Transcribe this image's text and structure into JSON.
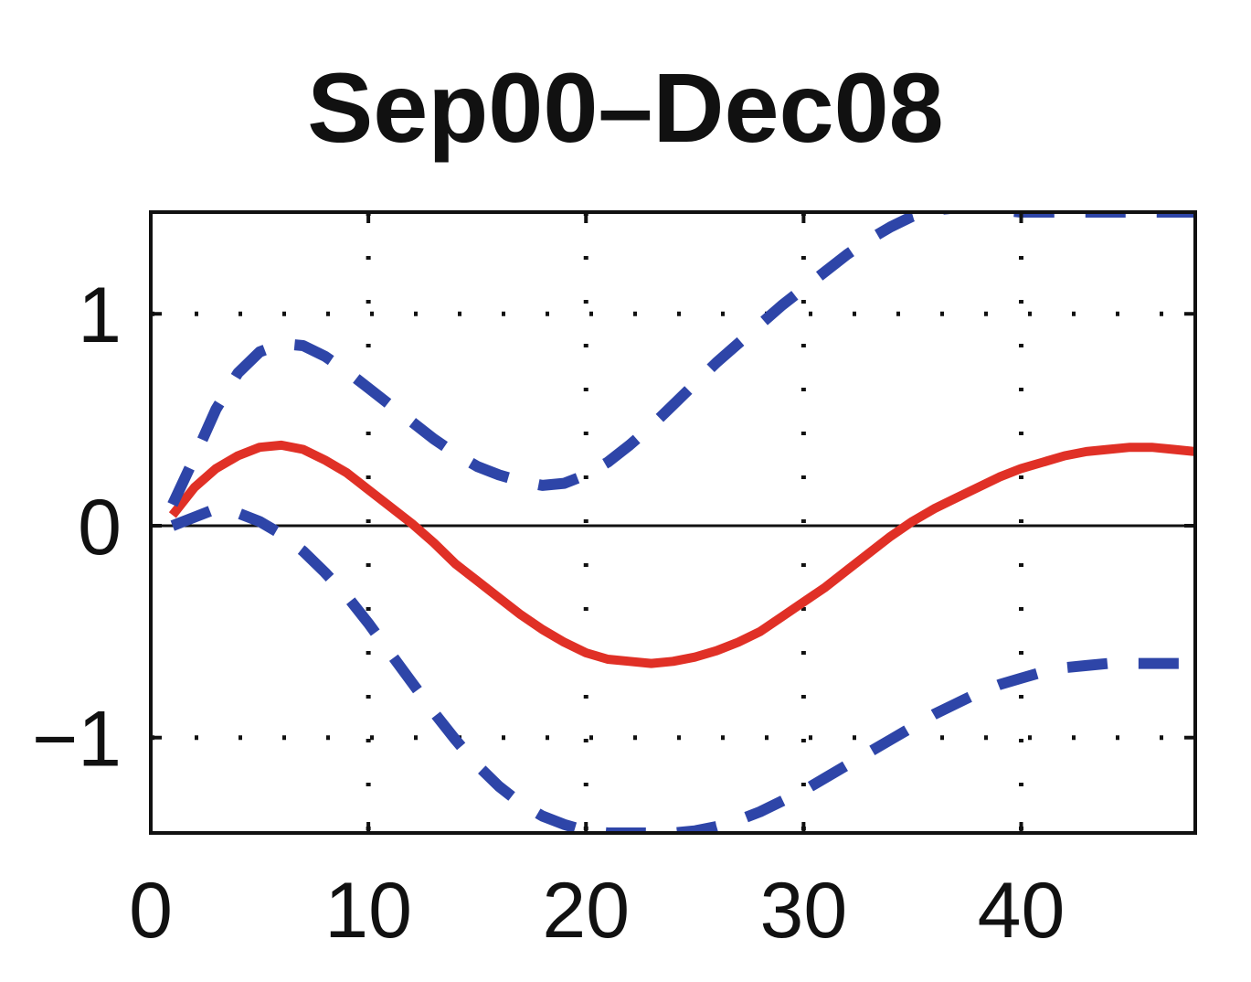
{
  "chart_data": {
    "type": "line",
    "title": "Sep00–Dec08",
    "xlabel": "",
    "ylabel": "",
    "xlim": [
      0,
      48
    ],
    "ylim": [
      -1.45,
      1.48
    ],
    "xticks": [
      0,
      10,
      20,
      30,
      40
    ],
    "xtick_labels": [
      "0",
      "10",
      "20",
      "30",
      "40"
    ],
    "yticks": [
      -1,
      0,
      1
    ],
    "ytick_labels": [
      "−1",
      "0",
      "1"
    ],
    "grid": "dotted",
    "zero_line": true,
    "legend": "none",
    "series": [
      {
        "role": "estimate",
        "color": "#e03026",
        "style": "solid",
        "x": [
          1,
          2,
          3,
          4,
          5,
          6,
          7,
          8,
          9,
          10,
          11,
          12,
          13,
          14,
          15,
          16,
          17,
          18,
          19,
          20,
          21,
          22,
          23,
          24,
          25,
          26,
          27,
          28,
          29,
          30,
          31,
          32,
          33,
          34,
          35,
          36,
          37,
          38,
          39,
          40,
          41,
          42,
          43,
          44,
          45,
          46,
          47,
          48
        ],
        "y": [
          0.05,
          0.18,
          0.27,
          0.33,
          0.37,
          0.38,
          0.36,
          0.31,
          0.25,
          0.17,
          0.09,
          0.01,
          -0.08,
          -0.18,
          -0.26,
          -0.34,
          -0.42,
          -0.49,
          -0.55,
          -0.6,
          -0.63,
          -0.64,
          -0.65,
          -0.64,
          -0.62,
          -0.59,
          -0.55,
          -0.5,
          -0.43,
          -0.36,
          -0.29,
          -0.21,
          -0.13,
          -0.05,
          0.02,
          0.08,
          0.13,
          0.18,
          0.23,
          0.27,
          0.3,
          0.33,
          0.35,
          0.36,
          0.37,
          0.37,
          0.36,
          0.35
        ]
      },
      {
        "role": "upper band",
        "color": "#2e45a8",
        "style": "dashed",
        "x": [
          1,
          2,
          3,
          4,
          5,
          6,
          7,
          8,
          9,
          10,
          11,
          12,
          13,
          14,
          15,
          16,
          17,
          18,
          19,
          20,
          21,
          22,
          23,
          24,
          25,
          26,
          27,
          28,
          29,
          30,
          31,
          32,
          33,
          34,
          35,
          36,
          37,
          38,
          39,
          40,
          41,
          42,
          43,
          44,
          45,
          46,
          47,
          48
        ],
        "y": [
          0.1,
          0.32,
          0.55,
          0.72,
          0.82,
          0.86,
          0.85,
          0.8,
          0.73,
          0.65,
          0.57,
          0.49,
          0.41,
          0.34,
          0.28,
          0.24,
          0.21,
          0.19,
          0.2,
          0.24,
          0.3,
          0.38,
          0.47,
          0.57,
          0.67,
          0.77,
          0.86,
          0.95,
          1.04,
          1.12,
          1.2,
          1.28,
          1.35,
          1.41,
          1.46,
          1.49,
          1.5,
          1.5,
          1.49,
          1.48,
          1.48,
          1.48,
          1.48,
          1.48,
          1.48,
          1.48,
          1.48,
          1.48
        ]
      },
      {
        "role": "lower band",
        "color": "#2e45a8",
        "style": "dashed",
        "x": [
          1,
          2,
          3,
          4,
          5,
          6,
          7,
          8,
          9,
          10,
          11,
          12,
          13,
          14,
          15,
          16,
          17,
          18,
          19,
          20,
          21,
          22,
          23,
          24,
          25,
          26,
          27,
          28,
          29,
          30,
          31,
          32,
          33,
          34,
          35,
          36,
          37,
          38,
          39,
          40,
          41,
          42,
          43,
          44,
          45,
          46,
          47,
          48
        ],
        "y": [
          0.0,
          0.04,
          0.08,
          0.06,
          0.02,
          -0.04,
          -0.12,
          -0.22,
          -0.33,
          -0.46,
          -0.6,
          -0.74,
          -0.88,
          -1.01,
          -1.13,
          -1.23,
          -1.31,
          -1.37,
          -1.41,
          -1.44,
          -1.45,
          -1.45,
          -1.45,
          -1.45,
          -1.44,
          -1.42,
          -1.39,
          -1.35,
          -1.3,
          -1.25,
          -1.19,
          -1.13,
          -1.07,
          -1.01,
          -0.95,
          -0.89,
          -0.84,
          -0.79,
          -0.75,
          -0.72,
          -0.69,
          -0.67,
          -0.66,
          -0.65,
          -0.65,
          -0.65,
          -0.65,
          -0.65
        ]
      }
    ]
  }
}
